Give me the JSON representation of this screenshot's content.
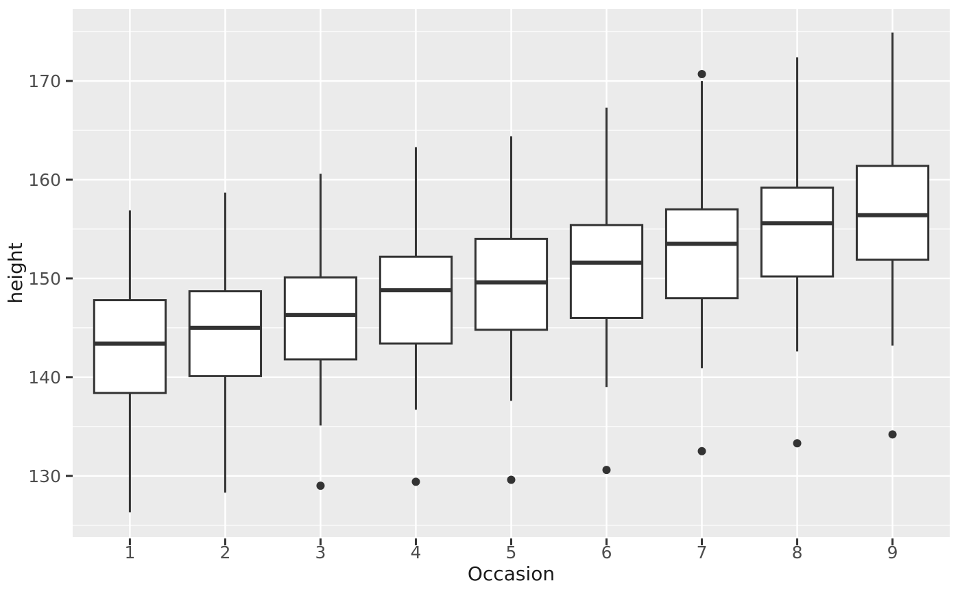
{
  "chart_data": {
    "type": "boxplot",
    "title": "",
    "xlabel": "Occasion",
    "ylabel": "height",
    "categories": [
      "1",
      "2",
      "3",
      "4",
      "5",
      "6",
      "7",
      "8",
      "9"
    ],
    "y_ticks": [
      130,
      140,
      150,
      160,
      170
    ],
    "y_minor_ticks": [
      125,
      135,
      145,
      155,
      165,
      175
    ],
    "ylim": [
      123.8,
      177.3
    ],
    "grid": true,
    "legend": "none",
    "boxes": [
      {
        "occasion": "1",
        "whisker_low": 126.3,
        "q1": 138.4,
        "median": 143.4,
        "q3": 147.8,
        "whisker_high": 156.9,
        "outliers": []
      },
      {
        "occasion": "2",
        "whisker_low": 128.3,
        "q1": 140.1,
        "median": 145.0,
        "q3": 148.7,
        "whisker_high": 158.7,
        "outliers": []
      },
      {
        "occasion": "3",
        "whisker_low": 135.1,
        "q1": 141.8,
        "median": 146.3,
        "q3": 150.1,
        "whisker_high": 160.6,
        "outliers": [
          129.0
        ]
      },
      {
        "occasion": "4",
        "whisker_low": 136.7,
        "q1": 143.4,
        "median": 148.8,
        "q3": 152.2,
        "whisker_high": 163.3,
        "outliers": [
          129.4
        ]
      },
      {
        "occasion": "5",
        "whisker_low": 137.6,
        "q1": 144.8,
        "median": 149.6,
        "q3": 154.0,
        "whisker_high": 164.4,
        "outliers": [
          129.6
        ]
      },
      {
        "occasion": "6",
        "whisker_low": 139.0,
        "q1": 146.0,
        "median": 151.6,
        "q3": 155.4,
        "whisker_high": 167.3,
        "outliers": [
          130.6
        ]
      },
      {
        "occasion": "7",
        "whisker_low": 140.9,
        "q1": 148.0,
        "median": 153.5,
        "q3": 157.0,
        "whisker_high": 170.0,
        "outliers": [
          170.7,
          132.5
        ]
      },
      {
        "occasion": "8",
        "whisker_low": 142.6,
        "q1": 150.2,
        "median": 155.6,
        "q3": 159.2,
        "whisker_high": 172.4,
        "outliers": [
          133.3
        ]
      },
      {
        "occasion": "9",
        "whisker_low": 143.2,
        "q1": 151.9,
        "median": 156.4,
        "q3": 161.4,
        "whisker_high": 174.9,
        "outliers": [
          134.2
        ]
      }
    ],
    "colors": {
      "panel_background": "#EBEBEB",
      "grid_line": "#FFFFFF",
      "box_border": "#333333",
      "box_fill": "#FFFFFF",
      "median_line": "#333333",
      "whisker": "#333333",
      "outlier_point": "#333333",
      "tick_label": "#4D4D4D",
      "axis_title": "#1A1A1A",
      "tick_mark": "#333333"
    }
  }
}
